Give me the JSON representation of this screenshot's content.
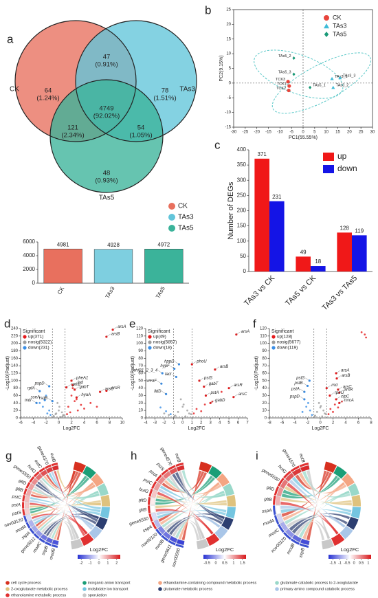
{
  "chart_data": [
    {
      "type": "venn",
      "panel": "a",
      "sets": [
        {
          "name": "CK",
          "color": "#e8705e"
        },
        {
          "name": "TAs3",
          "color": "#62c5da"
        },
        {
          "name": "TAs5",
          "color": "#3bb39a"
        }
      ],
      "values": [
        64,
        78,
        48,
        47,
        121,
        54,
        4749
      ],
      "percents": {
        "values": [
          1.24,
          1.51,
          0.93,
          0.91,
          2.34,
          1.05,
          92.02
        ],
        "value_labels": [
          "(1.24%)",
          "(1.51%)",
          "(0.93%)",
          "(0.91%)",
          "(2.34%)",
          "(1.05%)",
          "(92.02%)"
        ]
      }
    },
    {
      "type": "bar",
      "categories": [
        "CK",
        "TAs3",
        "TAs5"
      ],
      "values": [
        4981,
        4928,
        4972
      ],
      "colors": [
        "#e8705e",
        "#7ecfe0",
        "#3bb39a"
      ],
      "ylim": [
        0,
        6000
      ],
      "yticks": [
        0,
        2000,
        4000,
        6000
      ]
    },
    {
      "type": "scatter",
      "panel": "b",
      "xlabel": "PC1(55.55%)",
      "ylabel": "PC2(9.15%)",
      "xlim": [
        -30,
        30
      ],
      "xticks": [
        -30,
        -25,
        -20,
        -15,
        -10,
        -5,
        0,
        5,
        10,
        15,
        20,
        25,
        30
      ],
      "ylim": [
        -15,
        25
      ],
      "yticks": [
        -15,
        -10,
        -5,
        0,
        5,
        10,
        15,
        20,
        25
      ],
      "series": [
        {
          "name": "CK",
          "color": "#e8453c",
          "marker": "circle",
          "labels": [
            "TCK3",
            "TCK1",
            "TCK2"
          ],
          "x": [
            -6.5,
            -6,
            -6.2
          ],
          "values": [
            0.5,
            -1,
            -2.5
          ]
        },
        {
          "name": "TAs3",
          "color": "#40bcd8",
          "marker": "triangle",
          "labels": [
            "TAs3_1",
            "TAs3_3",
            "TAs3_2"
          ],
          "x": [
            12.5,
            16,
            13
          ],
          "values": [
            1.5,
            1.8,
            -1.5
          ]
        },
        {
          "name": "TAs5",
          "color": "#1a9a78",
          "marker": "diamond",
          "labels": [
            "TAs5_2",
            "TAs5_3",
            "TAs5_1"
          ],
          "x": [
            -4,
            -4,
            3
          ],
          "values": [
            8.5,
            3,
            -1.5
          ]
        }
      ]
    },
    {
      "type": "grouped_bar",
      "panel": "c",
      "ylabel": "Number of DEGs",
      "categories": [
        "TAs3 vs CK",
        "TAs5 vs CK",
        "TAs3 vs TAs5"
      ],
      "ylim": [
        0,
        400
      ],
      "yticks": [
        0,
        50,
        100,
        150,
        200,
        250,
        300,
        350,
        400
      ],
      "series": [
        {
          "name": "up",
          "color": "#f01818",
          "values": [
            371,
            49,
            128
          ]
        },
        {
          "name": "down",
          "color": "#1414e6",
          "values": [
            231,
            18,
            119
          ]
        }
      ]
    },
    {
      "type": "volcano",
      "panel": "d",
      "xlabel": "Log2FC",
      "ylabel": "-Log10(Padjust)",
      "legend_title": "Significant",
      "xlim": [
        -6,
        10
      ],
      "xticks": [
        -6,
        -4,
        -2,
        0,
        2,
        4,
        6,
        8,
        10
      ],
      "ylim": [
        0,
        240
      ],
      "yticks": [
        0,
        20,
        40,
        60,
        80,
        100,
        120,
        140,
        160,
        180,
        200,
        220,
        240
      ],
      "series": [
        {
          "name": "up(371)",
          "color": "#e41a1c",
          "x": [
            1.5,
            2,
            2.5,
            3,
            1.8,
            2.2,
            3.5,
            4,
            2.8,
            1.3,
            5,
            6
          ],
          "values": [
            30,
            60,
            45,
            20,
            15,
            80,
            35,
            25,
            50,
            10,
            40,
            30
          ]
        },
        {
          "name": "nosig(5322)",
          "color": "#9e9e9e",
          "x": [
            -0.8,
            -0.5,
            0,
            0.3,
            0.7,
            -0.2,
            0.5,
            -0.9,
            0.9,
            0.1,
            -0.4,
            0.6
          ],
          "values": [
            5,
            10,
            20,
            3,
            8,
            40,
            15,
            2,
            6,
            30,
            12,
            4
          ]
        },
        {
          "name": "down(231)",
          "color": "#3a8ee6",
          "x": [
            -1.5,
            -2,
            -2.5,
            -1.8,
            -3,
            -1.3
          ],
          "values": [
            20,
            60,
            30,
            12,
            40,
            8
          ]
        }
      ],
      "annotations": [
        {
          "text": "arsB",
          "x": 7.5,
          "y": 218
        },
        {
          "text": "arsA",
          "x": 8.5,
          "y": 237
        },
        {
          "text": "pheA1",
          "x": 2,
          "y": 100
        },
        {
          "text": "ipd",
          "x": 2.2,
          "y": 88
        },
        {
          "text": "gabT",
          "x": 2.5,
          "y": 76
        },
        {
          "text": "rpmJ",
          "x": 1.2,
          "y": 82
        },
        {
          "text": "hyaA",
          "x": 2.8,
          "y": 55
        },
        {
          "text": "arsC",
          "x": 6.5,
          "y": 70
        },
        {
          "text": "arsR",
          "x": 7.5,
          "y": 73
        },
        {
          "text": "pspD",
          "x": -1.5,
          "y": 85
        },
        {
          "text": "rpfA",
          "x": -3,
          "y": 72
        },
        {
          "text": "sseA",
          "x": -2.2,
          "y": 48
        },
        {
          "text": "mdr",
          "x": -3.5,
          "y": 40
        },
        {
          "text": "rsdB",
          "x": -1,
          "y": 45
        }
      ]
    },
    {
      "type": "volcano",
      "panel": "e",
      "xlabel": "Log2FC",
      "ylabel": "-Log10(Padjust)",
      "legend_title": "Significant",
      "xlim": [
        -4,
        7
      ],
      "xticks": [
        -4,
        -3,
        -2,
        -1,
        0,
        1,
        2,
        3,
        4,
        5,
        6,
        7
      ],
      "ylim": [
        0,
        120
      ],
      "yticks": [
        0,
        10,
        20,
        30,
        40,
        50,
        60,
        70,
        80,
        90,
        100,
        110,
        120
      ],
      "series": [
        {
          "name": "up(49)",
          "color": "#e41a1c",
          "x": [
            1.2,
            1.5,
            2,
            2.4,
            3.2,
            4.2
          ],
          "values": [
            6,
            12,
            9,
            18,
            22,
            35
          ]
        },
        {
          "name": "nosig(5857)",
          "color": "#9e9e9e",
          "x": [
            -0.8,
            -0.5,
            0,
            0.3,
            0.7,
            -0.2,
            0.5,
            -0.9,
            0.9,
            0.1,
            -1.5,
            -2
          ],
          "values": [
            3,
            8,
            15,
            2,
            6,
            25,
            10,
            2,
            5,
            18,
            4,
            6
          ]
        },
        {
          "name": "down(18)",
          "color": "#3a8ee6",
          "x": [
            -1.3,
            -1.8,
            -2.4
          ],
          "values": [
            5,
            9,
            14
          ]
        }
      ],
      "annotations": [
        {
          "text": "arsA",
          "x": 5.8,
          "y": 112
        },
        {
          "text": "arsB",
          "x": 3.5,
          "y": 65
        },
        {
          "text": "phoU",
          "x": 1,
          "y": 72
        },
        {
          "text": "hppD",
          "x": -0.4,
          "y": 72
        },
        {
          "text": "hypF",
          "x": -0.9,
          "y": 66
        },
        {
          "text": "whiB1_2_3_4",
          "x": -2.2,
          "y": 60
        },
        {
          "text": "lacI",
          "x": -0.7,
          "y": 55
        },
        {
          "text": "weaF",
          "x": -2.3,
          "y": 46
        },
        {
          "text": "lldD",
          "x": -1.8,
          "y": 32
        },
        {
          "text": "pstS",
          "x": 1.8,
          "y": 50
        },
        {
          "text": "gabT",
          "x": 2.3,
          "y": 42
        },
        {
          "text": "pstA",
          "x": 2.5,
          "y": 30
        },
        {
          "text": "gabD",
          "x": 3,
          "y": 20
        },
        {
          "text": "arsR",
          "x": 5,
          "y": 40
        },
        {
          "text": "arsC",
          "x": 5.5,
          "y": 28
        }
      ]
    },
    {
      "type": "volcano",
      "panel": "f",
      "xlabel": "Log2FC",
      "ylabel": "-Log10(Padjust)",
      "legend_title": "Significant",
      "xlim": [
        -8,
        8
      ],
      "xticks": [
        -8,
        -6,
        -4,
        -2,
        0,
        2,
        4,
        6,
        8
      ],
      "ylim": [
        0,
        120
      ],
      "yticks": [
        0,
        10,
        20,
        30,
        40,
        50,
        60,
        70,
        80,
        90,
        100,
        110,
        120
      ],
      "series": [
        {
          "name": "up(128)",
          "color": "#e41a1c",
          "x": [
            1.3,
            1.6,
            2,
            2.3,
            2.8,
            3.4,
            6.5,
            7,
            7.2
          ],
          "values": [
            5,
            12,
            8,
            18,
            14,
            22,
            115,
            112,
            108
          ]
        },
        {
          "name": "nosig(5677)",
          "color": "#9e9e9e",
          "x": [
            -0.8,
            -0.5,
            0,
            0.3,
            0.7,
            -0.2,
            0.5,
            -0.9,
            0.9,
            0.1
          ],
          "values": [
            3,
            8,
            14,
            2,
            6,
            20,
            10,
            2,
            5,
            16
          ]
        },
        {
          "name": "down(119)",
          "color": "#3a8ee6",
          "x": [
            -1.3,
            -1.6,
            -2.2,
            -2.8,
            -1.9
          ],
          "values": [
            4,
            10,
            15,
            8,
            20
          ]
        }
      ],
      "annotations": [
        {
          "text": "arsA",
          "x": 2.5,
          "y": 60
        },
        {
          "text": "arsB",
          "x": 2.6,
          "y": 53
        },
        {
          "text": "pstS",
          "x": -1.7,
          "y": 50
        },
        {
          "text": "pstB",
          "x": -2,
          "y": 43
        },
        {
          "text": "pstA",
          "x": -2.5,
          "y": 35
        },
        {
          "text": "pspD",
          "x": -2.5,
          "y": 25
        },
        {
          "text": "rnd",
          "x": 1,
          "y": 40
        },
        {
          "text": "arsC",
          "x": 2.8,
          "y": 38
        },
        {
          "text": "arsR",
          "x": 3,
          "y": 34
        },
        {
          "text": "rpmJ",
          "x": 1.5,
          "y": 30
        },
        {
          "text": "clpC",
          "x": 2.5,
          "y": 25
        },
        {
          "text": "mrcA",
          "x": 3,
          "y": 20
        }
      ]
    },
    {
      "type": "chord",
      "panel": "g",
      "colorbar_label": "Log2FC",
      "clim": [
        -2.4,
        2.4
      ],
      "cticks": [
        -2,
        -1,
        0,
        1,
        2
      ],
      "genes": [
        "modB",
        "sspB",
        "modC",
        "gene5611",
        "sspA",
        "modA",
        "nov00120",
        "pstS",
        "pstA",
        "pstC",
        "gltB",
        "gltD",
        "gene5550",
        "hutG",
        "eutC",
        "gene4570",
        "eutB"
      ],
      "values": [
        -2,
        -1.8,
        -1.6,
        -1.2,
        -1,
        -0.9,
        -0.4,
        0.5,
        0.6,
        0.7,
        0.9,
        1,
        1.2,
        1.5,
        1.8,
        2,
        2.2
      ]
    },
    {
      "type": "chord",
      "panel": "h",
      "colorbar_label": "Log2FC",
      "clim": [
        -0.7,
        1.7
      ],
      "cticks": [
        -0.5,
        0,
        0.5,
        1,
        1.5
      ],
      "genes": [
        "nov00090",
        "gene5611",
        "modB",
        "nov00120",
        "sspA",
        "gene5550",
        "gltB",
        "gltD",
        "hutG",
        "pstC",
        "pstA",
        "pstS",
        "gene4570",
        "eutB"
      ],
      "values": [
        -0.6,
        -0.5,
        -0.3,
        -0.2,
        0.1,
        0.3,
        0.5,
        0.6,
        0.8,
        1,
        1.1,
        1.2,
        1.4,
        1.6
      ]
    },
    {
      "type": "chord",
      "panel": "i",
      "colorbar_label": "Log2FC",
      "clim": [
        -1.8,
        1.2
      ],
      "cticks": [
        -1.5,
        -1,
        -0.5,
        0,
        0.5,
        1
      ],
      "genes": [
        "sspB",
        "modB",
        "nov00120",
        "modC",
        "modA",
        "sspA",
        "gltB",
        "gltD",
        "gene5550",
        "hutG",
        "gene4570",
        "eutB"
      ],
      "values": [
        -1.6,
        -1.4,
        -1.1,
        -0.9,
        -0.6,
        -0.3,
        0.2,
        0.4,
        0.6,
        0.8,
        1,
        1.1
      ]
    }
  ],
  "chord_legend": [
    {
      "name": "cell cycle process",
      "color": "#d7301f"
    },
    {
      "name": "inorganic anion transport",
      "color": "#1b9e77"
    },
    {
      "name": "ethanolamine-containing compound metabolic process",
      "color": "#f4a582"
    },
    {
      "name": "glutamate catabolic process to 2-oxoglutarate",
      "color": "#99d8c9"
    },
    {
      "name": "2-oxoglutarate metabolic process",
      "color": "#dfc27d"
    },
    {
      "name": "molybdate ion transport",
      "color": "#74c5e0"
    },
    {
      "name": "glutamate metabolic process",
      "color": "#2c3e70"
    },
    {
      "name": "primary amino compound catabolic process",
      "color": "#a9c6e8"
    },
    {
      "name": "ethanolamine metabolic process",
      "color": "#e03030"
    },
    {
      "name": "sporulation",
      "color": "#c8c8c8"
    }
  ]
}
